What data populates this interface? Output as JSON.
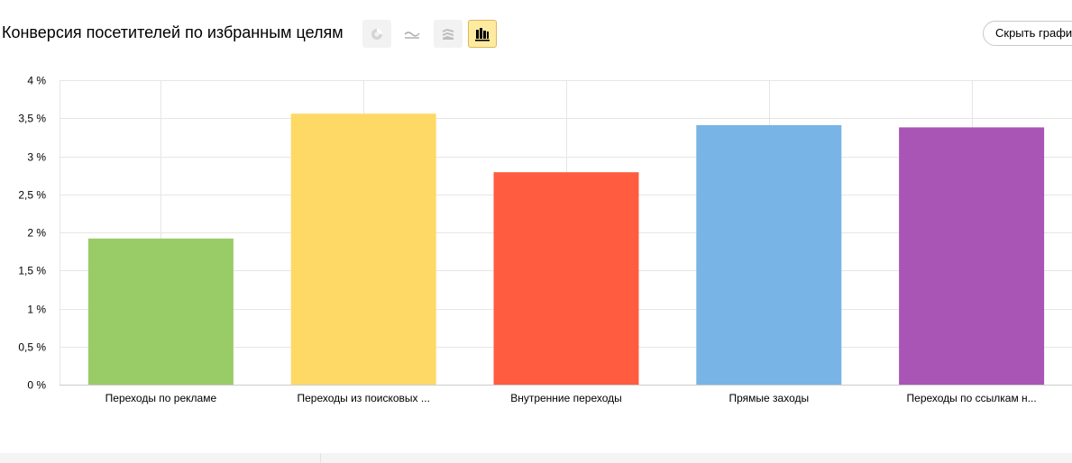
{
  "header": {
    "title": "Конверсия посетителей по избранным целям",
    "hide_button_label": "Скрыть графи",
    "view_buttons": [
      {
        "icon": "pie-chart-icon",
        "active": false
      },
      {
        "icon": "line-chart-icon",
        "active": false
      },
      {
        "icon": "area-chart-icon",
        "active": false
      },
      {
        "icon": "bar-chart-icon",
        "active": true
      }
    ]
  },
  "colors": {
    "grid": "#e6e6e6",
    "axis_text": "#000000",
    "active_button_bg": "#ffeba0"
  },
  "chart_data": {
    "type": "bar",
    "title": "",
    "xlabel": "",
    "ylabel": "",
    "ylim": [
      0,
      4
    ],
    "y_ticks": [
      {
        "value": 0,
        "label": "0 %"
      },
      {
        "value": 0.5,
        "label": "0,5 %"
      },
      {
        "value": 1,
        "label": "1 %"
      },
      {
        "value": 1.5,
        "label": "1,5 %"
      },
      {
        "value": 2,
        "label": "2 %"
      },
      {
        "value": 2.5,
        "label": "2,5 %"
      },
      {
        "value": 3,
        "label": "3 %"
      },
      {
        "value": 3.5,
        "label": "3,5 %"
      },
      {
        "value": 4,
        "label": "4 %"
      }
    ],
    "categories": [
      "Переходы по рекламе",
      "Переходы из поисковых ...",
      "Внутренние переходы",
      "Прямые заходы",
      "Переходы по ссылкам н..."
    ],
    "values": [
      1.92,
      3.56,
      2.79,
      3.41,
      3.38
    ],
    "colors": [
      "#99cc66",
      "#ffd966",
      "#ff5c40",
      "#78b4e5",
      "#a855b5"
    ],
    "grid": true,
    "legend": "none"
  }
}
